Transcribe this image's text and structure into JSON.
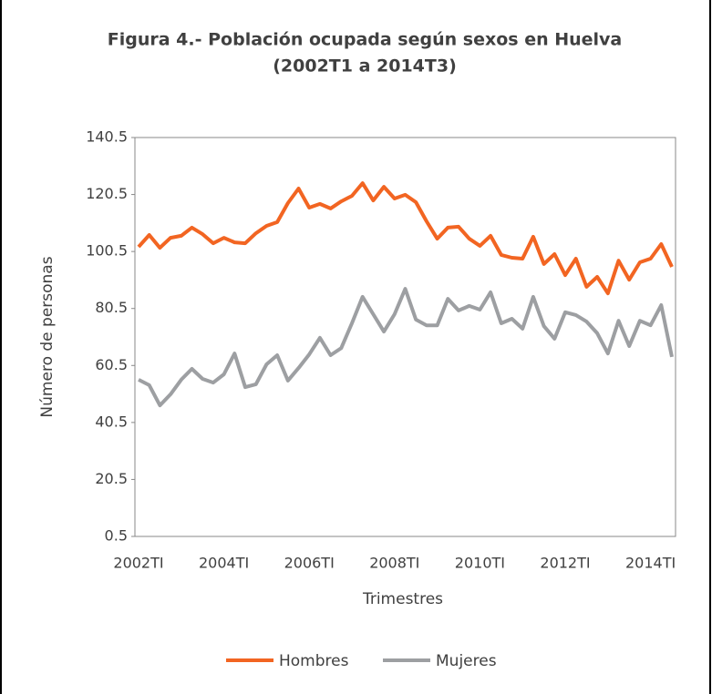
{
  "chart_data": {
    "type": "line",
    "title": "Figura 4.- Población ocupada según sexos en Huelva",
    "subtitle": "(2002T1 a 2014T3)",
    "x_label": "Trimestres",
    "y_label": "Número de personas",
    "categories": [
      "2002TI",
      null,
      null,
      null,
      null,
      null,
      null,
      null,
      "2004TI",
      null,
      null,
      null,
      null,
      null,
      null,
      null,
      "2006TI",
      null,
      null,
      null,
      null,
      null,
      null,
      null,
      "2008TI",
      null,
      null,
      null,
      null,
      null,
      null,
      null,
      "2010TI",
      null,
      null,
      null,
      null,
      null,
      null,
      null,
      "2012TI",
      null,
      null,
      null,
      null,
      null,
      null,
      null,
      "2014TI",
      null,
      null
    ],
    "ylim": [
      0.5,
      140.5
    ],
    "yticks": [
      0.5,
      20.5,
      40.5,
      60.5,
      80.5,
      100.5,
      120.5,
      140.5
    ],
    "legend": "bottom",
    "series": [
      {
        "name": "Hombres",
        "color": "#f26522",
        "values": [
          102.1,
          106.3,
          101.8,
          105.3,
          106,
          108.9,
          106.6,
          103.4,
          105.3,
          103.7,
          103.4,
          106.9,
          109.5,
          110.8,
          117.5,
          122.6,
          115.9,
          117.2,
          115.6,
          118.1,
          120,
          124.5,
          118.4,
          123.2,
          119.1,
          120.4,
          117.8,
          111.1,
          105,
          108.9,
          109.2,
          105,
          102.5,
          106,
          99.3,
          98.3,
          98,
          105.7,
          96.1,
          99.6,
          92.2,
          98,
          88.1,
          91.6,
          85.8,
          97.3,
          90.6,
          96.7,
          98,
          103.1,
          95.1
        ]
      },
      {
        "name": "Mujeres",
        "color": "#9d9fa2",
        "values": [
          55.5,
          53.6,
          46.5,
          50.4,
          55.5,
          59.3,
          55.8,
          54.5,
          57.4,
          64.7,
          52.9,
          53.9,
          60.9,
          64.1,
          55.2,
          59.6,
          64.4,
          70.2,
          64.1,
          66.6,
          75.3,
          84.6,
          78.5,
          72.4,
          78.5,
          87.4,
          76.6,
          74.6,
          74.6,
          83.9,
          79.8,
          81.4,
          80.1,
          86.2,
          75.3,
          76.9,
          73.4,
          84.6,
          74.3,
          69.9,
          79.2,
          78.2,
          75.9,
          71.8,
          64.7,
          76.2,
          67.3,
          76.2,
          74.6,
          81.7,
          63.5
        ]
      }
    ]
  }
}
